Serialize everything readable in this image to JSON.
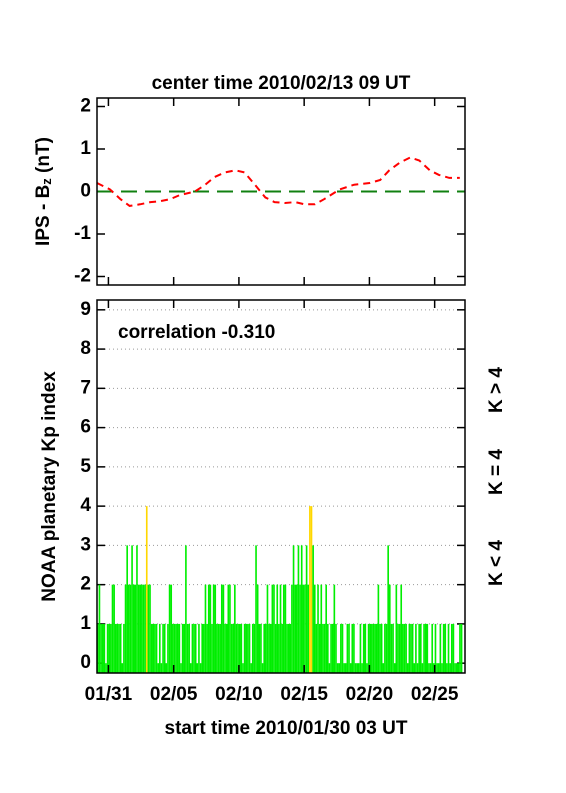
{
  "chart_data": [
    {
      "type": "line",
      "title": "center time 2010/02/13 09 UT",
      "ylabel_parts": [
        "IPS - B",
        "z",
        " (nT)"
      ],
      "xlim": [
        0,
        28.2
      ],
      "ylim": [
        -2.2,
        2.2
      ],
      "yticks": [
        -2,
        -1,
        0,
        1,
        2
      ],
      "reference_line": {
        "value": 0,
        "color": "#108010"
      },
      "series": [
        {
          "color": "#ff0000",
          "x": [
            0,
            1,
            1.8,
            2.5,
            3.3,
            4.1,
            4.8,
            5.6,
            6.3,
            7.5,
            8.3,
            9,
            9.8,
            10.6,
            11.3,
            12.1,
            12.9,
            13.6,
            14.4,
            15.2,
            15.9,
            16.7,
            17.4,
            18.6,
            19.7,
            20.9,
            21.7,
            22.4,
            23.2,
            24,
            24.7,
            25.5,
            26.2,
            27,
            27.8
          ],
          "values": [
            0.2,
            0.05,
            -0.18,
            -0.34,
            -0.3,
            -0.25,
            -0.23,
            -0.18,
            -0.09,
            0,
            0.16,
            0.34,
            0.45,
            0.5,
            0.45,
            0.16,
            -0.14,
            -0.25,
            -0.27,
            -0.25,
            -0.3,
            -0.3,
            -0.18,
            0.05,
            0.16,
            0.2,
            0.27,
            0.5,
            0.68,
            0.8,
            0.73,
            0.5,
            0.39,
            0.32,
            0.32
          ]
        }
      ]
    },
    {
      "type": "bar",
      "xlabel": "start time 2010/01/30 03 UT",
      "ylabel": "NOAA planetary Kp index",
      "annotation": "correlation -0.310",
      "xlim": [
        0,
        28.2
      ],
      "ylim": [
        -0.25,
        9.25
      ],
      "yticks": [
        0,
        1,
        2,
        3,
        4,
        5,
        6,
        7,
        8,
        9
      ],
      "grid": true,
      "xticks": [
        {
          "value": 0.875,
          "label": "01/31"
        },
        {
          "value": 5.875,
          "label": "02/05"
        },
        {
          "value": 10.875,
          "label": "02/10"
        },
        {
          "value": 15.875,
          "label": "02/15"
        },
        {
          "value": 20.875,
          "label": "02/20"
        },
        {
          "value": 25.875,
          "label": "02/25"
        }
      ],
      "threshold": 4,
      "legend": [
        {
          "label": "K > 4",
          "color": "#ff0000"
        },
        {
          "label": "K = 4",
          "color": "#ffd700"
        },
        {
          "label": "K < 4",
          "color": "#00ee00"
        }
      ],
      "x": [
        0,
        0.125,
        0.25,
        0.375,
        0.5,
        0.625,
        0.75,
        0.875,
        1,
        1.125,
        1.25,
        1.375,
        1.5,
        1.625,
        1.75,
        1.875,
        2,
        2.125,
        2.25,
        2.375,
        2.5,
        2.625,
        2.75,
        2.875,
        3,
        3.125,
        3.25,
        3.375,
        3.5,
        3.625,
        3.75,
        3.875,
        4,
        4.125,
        4.25,
        4.375,
        4.5,
        4.625,
        4.75,
        4.875,
        5,
        5.125,
        5.25,
        5.375,
        5.5,
        5.625,
        5.75,
        5.875,
        6,
        6.125,
        6.25,
        6.375,
        6.5,
        6.625,
        6.75,
        6.875,
        7,
        7.125,
        7.25,
        7.375,
        7.5,
        7.625,
        7.75,
        7.875,
        8,
        8.125,
        8.25,
        8.375,
        8.5,
        8.625,
        8.75,
        8.875,
        9,
        9.125,
        9.25,
        9.375,
        9.5,
        9.625,
        9.75,
        9.875,
        10,
        10.125,
        10.25,
        10.375,
        10.5,
        10.625,
        10.75,
        10.875,
        11,
        11.125,
        11.25,
        11.375,
        11.5,
        11.625,
        11.75,
        11.875,
        12,
        12.125,
        12.25,
        12.375,
        12.5,
        12.625,
        12.75,
        12.875,
        13,
        13.125,
        13.25,
        13.375,
        13.5,
        13.625,
        13.75,
        13.875,
        14,
        14.125,
        14.25,
        14.375,
        14.5,
        14.625,
        14.75,
        14.875,
        15,
        15.125,
        15.25,
        15.375,
        15.5,
        15.625,
        15.75,
        15.875,
        16,
        16.125,
        16.25,
        16.375,
        16.5,
        16.625,
        16.75,
        16.875,
        17,
        17.125,
        17.25,
        17.375,
        17.5,
        17.625,
        17.75,
        17.875,
        18,
        18.125,
        18.25,
        18.375,
        18.5,
        18.625,
        18.75,
        18.875,
        19,
        19.125,
        19.25,
        19.375,
        19.5,
        19.625,
        19.75,
        19.875,
        20,
        20.125,
        20.25,
        20.375,
        20.5,
        20.625,
        20.75,
        20.875,
        21,
        21.125,
        21.25,
        21.375,
        21.5,
        21.625,
        21.75,
        21.875,
        22,
        22.125,
        22.25,
        22.375,
        22.5,
        22.625,
        22.75,
        22.875,
        23,
        23.125,
        23.25,
        23.375,
        23.5,
        23.625,
        23.75,
        23.875,
        24,
        24.125,
        24.25,
        24.375,
        24.5,
        24.625,
        24.75,
        24.875,
        25,
        25.125,
        25.25,
        25.375,
        25.5,
        25.625,
        25.75,
        25.875,
        26,
        26.125,
        26.25,
        26.375,
        26.5,
        26.625,
        26.75,
        26.875,
        27,
        27.125,
        27.25,
        27.375,
        27.5,
        27.625,
        27.75,
        27.875
      ],
      "values": [
        1,
        2,
        1,
        1,
        1,
        0,
        1,
        1,
        1,
        2,
        2,
        1,
        1,
        1,
        1,
        0,
        1,
        2,
        3,
        2,
        2,
        3,
        2,
        2,
        3,
        2,
        2,
        2,
        2,
        2,
        4,
        2,
        2,
        1,
        1,
        1,
        1,
        0,
        1,
        0,
        1,
        1,
        0,
        1,
        2,
        2,
        1,
        1,
        1,
        1,
        1,
        0,
        1,
        1,
        3,
        1,
        1,
        0,
        1,
        1,
        1,
        0,
        1,
        0,
        1,
        1,
        2,
        1,
        2,
        2,
        1,
        2,
        2,
        1,
        1,
        1,
        2,
        2,
        1,
        1,
        2,
        2,
        1,
        1,
        2,
        1,
        1,
        1,
        1,
        0,
        1,
        1,
        1,
        1,
        0,
        1,
        1,
        3,
        2,
        1,
        1,
        0,
        1,
        1,
        2,
        1,
        1,
        2,
        2,
        1,
        2,
        1,
        2,
        1,
        2,
        2,
        1,
        1,
        1,
        2,
        3,
        2,
        2,
        3,
        2,
        3,
        2,
        2,
        3,
        2,
        4,
        4,
        3,
        2,
        1,
        2,
        1,
        2,
        1,
        1,
        2,
        1,
        0,
        1,
        1,
        2,
        1,
        0,
        0,
        1,
        1,
        0,
        0,
        1,
        1,
        0,
        1,
        1,
        0,
        0,
        0,
        1,
        0,
        1,
        1,
        0,
        1,
        1,
        1,
        1,
        1,
        1,
        2,
        1,
        1,
        0,
        1,
        1,
        3,
        2,
        1,
        1,
        0,
        2,
        1,
        1,
        2,
        1,
        1,
        1,
        0,
        1,
        1,
        1,
        0,
        1,
        0,
        1,
        1,
        0,
        1,
        1,
        1,
        0,
        0,
        1,
        0,
        1,
        0,
        0,
        1,
        0,
        1,
        1,
        0,
        1,
        0,
        1,
        1,
        0,
        0,
        0,
        1,
        1
      ]
    }
  ]
}
